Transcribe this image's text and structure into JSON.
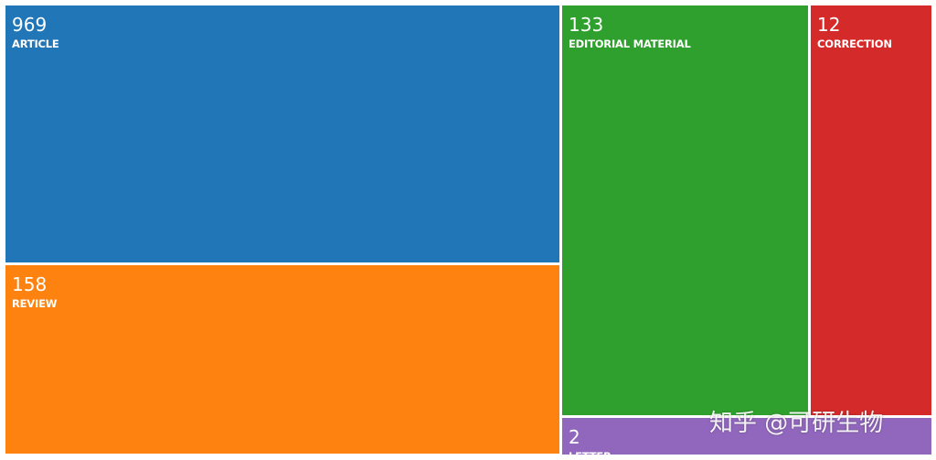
{
  "chart_data": {
    "type": "treemap",
    "categories": [
      "ARTICLE",
      "REVIEW",
      "EDITORIAL MATERIAL",
      "CORRECTION",
      "LETTER"
    ],
    "values": [
      969,
      158,
      133,
      12,
      2
    ],
    "colors": [
      "#2176b8",
      "#fd820f",
      "#2fa02d",
      "#d42a2a",
      "#9167bd"
    ]
  },
  "watermark": "知乎 @可研生物"
}
